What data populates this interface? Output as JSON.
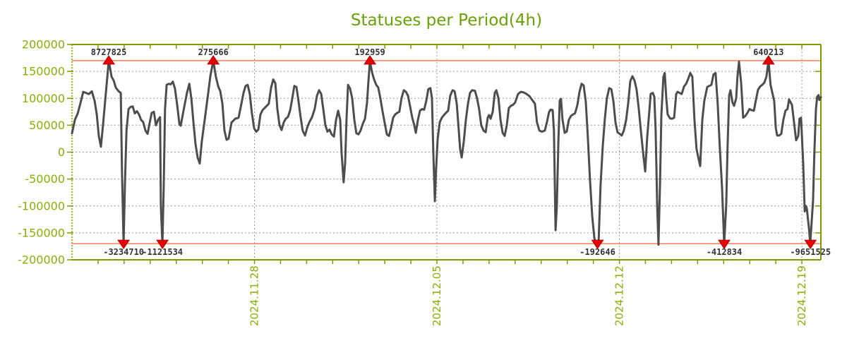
{
  "chart_data": {
    "type": "line",
    "title": "Statuses per Period(4h)",
    "series_name": "statuses",
    "legend": false,
    "grid": true,
    "x_axis": {
      "kind": "time",
      "range_days": [
        0,
        28.73
      ],
      "tick_labels": [
        "2024.11.28",
        "2024.12.05",
        "2024.12.12",
        "2024.12.19"
      ],
      "tick_positions_days": [
        7,
        14,
        21,
        28
      ],
      "minor_tick_interval_days": 1
    },
    "y_axis": {
      "range": [
        -200000,
        200000
      ],
      "tick_values": [
        200000,
        150000,
        100000,
        50000,
        0,
        -50000,
        -100000,
        -150000,
        -200000
      ],
      "tick_labels": [
        "200000",
        "150000",
        "100000",
        "50000",
        "0",
        "-50000",
        "-100000",
        "-150000",
        "-200000"
      ],
      "grid_values": [
        150000,
        100000,
        50000,
        0,
        -50000,
        -100000,
        -150000
      ]
    },
    "thresholds": {
      "upper": 170000,
      "lower": -170000
    },
    "markers": [
      {
        "t": 1.41,
        "side": "top",
        "label": "8727825"
      },
      {
        "t": 5.42,
        "side": "top",
        "label": "275666"
      },
      {
        "t": 11.43,
        "side": "top",
        "label": "192959"
      },
      {
        "t": 26.72,
        "side": "top",
        "label": "640213"
      },
      {
        "t": 1.98,
        "side": "bottom",
        "label": "-3234710"
      },
      {
        "t": 3.47,
        "side": "bottom",
        "label": "-1121534"
      },
      {
        "t": 20.16,
        "side": "bottom",
        "label": "-192646"
      },
      {
        "t": 25.02,
        "side": "bottom",
        "label": "-412834"
      },
      {
        "t": 28.33,
        "side": "bottom",
        "label": "-9651525"
      }
    ],
    "colors": {
      "background": "#ffffff",
      "line": "#4d4d4d",
      "axis": "#7d9b00",
      "axis_text": "#87b101",
      "title": "#69a206",
      "grid": "#999999",
      "threshold": "#ff7e55",
      "marker_fill": "#e60000",
      "marker_stroke": "#b50000",
      "marker_text": "#333333"
    },
    "points": [
      [
        0.0,
        35000
      ],
      [
        0.11,
        60000
      ],
      [
        0.22,
        72000
      ],
      [
        0.32,
        90000
      ],
      [
        0.43,
        112000
      ],
      [
        0.54,
        110000
      ],
      [
        0.65,
        108000
      ],
      [
        0.76,
        113000
      ],
      [
        0.87,
        95000
      ],
      [
        0.95,
        70000
      ],
      [
        1.03,
        30000
      ],
      [
        1.11,
        10000
      ],
      [
        1.19,
        50000
      ],
      [
        1.3,
        110000
      ],
      [
        1.41,
        170000
      ],
      [
        1.52,
        140000
      ],
      [
        1.6,
        133000
      ],
      [
        1.68,
        120000
      ],
      [
        1.79,
        113000
      ],
      [
        1.87,
        110000
      ],
      [
        1.92,
        -40000
      ],
      [
        1.98,
        -170000
      ],
      [
        2.03,
        -60000
      ],
      [
        2.09,
        40000
      ],
      [
        2.17,
        80000
      ],
      [
        2.25,
        84000
      ],
      [
        2.33,
        85000
      ],
      [
        2.41,
        72000
      ],
      [
        2.49,
        76000
      ],
      [
        2.57,
        70000
      ],
      [
        2.65,
        60000
      ],
      [
        2.73,
        56000
      ],
      [
        2.82,
        40000
      ],
      [
        2.9,
        34000
      ],
      [
        2.98,
        55000
      ],
      [
        3.06,
        73000
      ],
      [
        3.14,
        75000
      ],
      [
        3.22,
        50000
      ],
      [
        3.3,
        60000
      ],
      [
        3.38,
        65000
      ],
      [
        3.41,
        -100000
      ],
      [
        3.47,
        -170000
      ],
      [
        3.52,
        -60000
      ],
      [
        3.57,
        80000
      ],
      [
        3.63,
        125000
      ],
      [
        3.71,
        127000
      ],
      [
        3.79,
        126000
      ],
      [
        3.87,
        131000
      ],
      [
        3.95,
        118000
      ],
      [
        4.03,
        90000
      ],
      [
        4.12,
        52000
      ],
      [
        4.17,
        49000
      ],
      [
        4.25,
        70000
      ],
      [
        4.33,
        90000
      ],
      [
        4.41,
        110000
      ],
      [
        4.5,
        127000
      ],
      [
        4.58,
        100000
      ],
      [
        4.66,
        55000
      ],
      [
        4.74,
        15000
      ],
      [
        4.82,
        -10000
      ],
      [
        4.9,
        -21000
      ],
      [
        4.98,
        20000
      ],
      [
        5.09,
        60000
      ],
      [
        5.2,
        100000
      ],
      [
        5.31,
        142000
      ],
      [
        5.42,
        170000
      ],
      [
        5.52,
        140000
      ],
      [
        5.61,
        122000
      ],
      [
        5.69,
        113000
      ],
      [
        5.77,
        90000
      ],
      [
        5.85,
        40000
      ],
      [
        5.93,
        23000
      ],
      [
        6.01,
        25000
      ],
      [
        6.12,
        55000
      ],
      [
        6.26,
        62000
      ],
      [
        6.39,
        64000
      ],
      [
        6.5,
        90000
      ],
      [
        6.58,
        110000
      ],
      [
        6.66,
        123000
      ],
      [
        6.74,
        125000
      ],
      [
        6.82,
        108000
      ],
      [
        6.9,
        73000
      ],
      [
        6.99,
        44000
      ],
      [
        7.07,
        38000
      ],
      [
        7.15,
        42000
      ],
      [
        7.23,
        70000
      ],
      [
        7.31,
        78000
      ],
      [
        7.39,
        82000
      ],
      [
        7.47,
        86000
      ],
      [
        7.55,
        90000
      ],
      [
        7.64,
        120000
      ],
      [
        7.72,
        135000
      ],
      [
        7.8,
        128000
      ],
      [
        7.88,
        80000
      ],
      [
        7.96,
        50000
      ],
      [
        8.04,
        41000
      ],
      [
        8.12,
        55000
      ],
      [
        8.2,
        62000
      ],
      [
        8.29,
        66000
      ],
      [
        8.37,
        78000
      ],
      [
        8.45,
        100000
      ],
      [
        8.53,
        123000
      ],
      [
        8.61,
        121000
      ],
      [
        8.69,
        95000
      ],
      [
        8.77,
        65000
      ],
      [
        8.85,
        40000
      ],
      [
        8.94,
        31000
      ],
      [
        9.04,
        48000
      ],
      [
        9.12,
        57000
      ],
      [
        9.21,
        65000
      ],
      [
        9.31,
        80000
      ],
      [
        9.4,
        105000
      ],
      [
        9.48,
        115000
      ],
      [
        9.56,
        108000
      ],
      [
        9.64,
        80000
      ],
      [
        9.72,
        50000
      ],
      [
        9.8,
        38000
      ],
      [
        9.88,
        42000
      ],
      [
        9.96,
        33000
      ],
      [
        10.05,
        29000
      ],
      [
        10.13,
        60000
      ],
      [
        10.21,
        77000
      ],
      [
        10.29,
        60000
      ],
      [
        10.34,
        0
      ],
      [
        10.42,
        -56000
      ],
      [
        10.48,
        -20000
      ],
      [
        10.53,
        60000
      ],
      [
        10.59,
        125000
      ],
      [
        10.67,
        118000
      ],
      [
        10.75,
        100000
      ],
      [
        10.83,
        60000
      ],
      [
        10.91,
        35000
      ],
      [
        10.99,
        33000
      ],
      [
        11.07,
        40000
      ],
      [
        11.16,
        53000
      ],
      [
        11.24,
        62000
      ],
      [
        11.32,
        92000
      ],
      [
        11.37,
        130000
      ],
      [
        11.43,
        170000
      ],
      [
        11.51,
        148000
      ],
      [
        11.59,
        135000
      ],
      [
        11.67,
        125000
      ],
      [
        11.75,
        120000
      ],
      [
        11.83,
        100000
      ],
      [
        11.91,
        77000
      ],
      [
        12.0,
        53000
      ],
      [
        12.08,
        33000
      ],
      [
        12.16,
        30000
      ],
      [
        12.24,
        45000
      ],
      [
        12.32,
        64000
      ],
      [
        12.4,
        70000
      ],
      [
        12.48,
        73000
      ],
      [
        12.56,
        75000
      ],
      [
        12.64,
        100000
      ],
      [
        12.73,
        115000
      ],
      [
        12.81,
        112000
      ],
      [
        12.89,
        105000
      ],
      [
        12.97,
        85000
      ],
      [
        13.05,
        65000
      ],
      [
        13.13,
        50000
      ],
      [
        13.19,
        36000
      ],
      [
        13.27,
        60000
      ],
      [
        13.35,
        77000
      ],
      [
        13.43,
        80000
      ],
      [
        13.51,
        79000
      ],
      [
        13.59,
        95000
      ],
      [
        13.67,
        117000
      ],
      [
        13.75,
        119000
      ],
      [
        13.81,
        100000
      ],
      [
        13.86,
        0
      ],
      [
        13.92,
        -91000
      ],
      [
        13.97,
        -30000
      ],
      [
        14.03,
        25000
      ],
      [
        14.11,
        56000
      ],
      [
        14.19,
        64000
      ],
      [
        14.27,
        69000
      ],
      [
        14.35,
        73000
      ],
      [
        14.43,
        77000
      ],
      [
        14.51,
        105000
      ],
      [
        14.6,
        115000
      ],
      [
        14.68,
        113000
      ],
      [
        14.76,
        90000
      ],
      [
        14.84,
        40000
      ],
      [
        14.89,
        5000
      ],
      [
        14.95,
        -10000
      ],
      [
        15.03,
        20000
      ],
      [
        15.11,
        60000
      ],
      [
        15.19,
        90000
      ],
      [
        15.27,
        110000
      ],
      [
        15.35,
        115000
      ],
      [
        15.46,
        114000
      ],
      [
        15.54,
        100000
      ],
      [
        15.62,
        80000
      ],
      [
        15.7,
        50000
      ],
      [
        15.79,
        40000
      ],
      [
        15.87,
        37000
      ],
      [
        15.95,
        64000
      ],
      [
        16.0,
        69000
      ],
      [
        16.06,
        62000
      ],
      [
        16.14,
        75000
      ],
      [
        16.22,
        110000
      ],
      [
        16.28,
        115000
      ],
      [
        16.36,
        100000
      ],
      [
        16.44,
        60000
      ],
      [
        16.52,
        36000
      ],
      [
        16.6,
        30000
      ],
      [
        16.68,
        50000
      ],
      [
        16.76,
        82000
      ],
      [
        16.84,
        86000
      ],
      [
        16.92,
        88000
      ],
      [
        17.0,
        92000
      ],
      [
        17.11,
        108000
      ],
      [
        17.22,
        112000
      ],
      [
        17.33,
        111000
      ],
      [
        17.44,
        108000
      ],
      [
        17.55,
        104000
      ],
      [
        17.76,
        90000
      ],
      [
        17.84,
        55000
      ],
      [
        17.93,
        40000
      ],
      [
        18.03,
        38000
      ],
      [
        18.14,
        40000
      ],
      [
        18.22,
        56000
      ],
      [
        18.3,
        74000
      ],
      [
        18.36,
        79000
      ],
      [
        18.44,
        78000
      ],
      [
        18.49,
        40000
      ],
      [
        18.55,
        -145000
      ],
      [
        18.6,
        -100000
      ],
      [
        18.66,
        20000
      ],
      [
        18.71,
        96000
      ],
      [
        18.76,
        99000
      ],
      [
        18.82,
        60000
      ],
      [
        18.9,
        36000
      ],
      [
        18.98,
        38000
      ],
      [
        19.06,
        60000
      ],
      [
        19.14,
        67000
      ],
      [
        19.22,
        70000
      ],
      [
        19.3,
        72000
      ],
      [
        19.39,
        88000
      ],
      [
        19.47,
        112000
      ],
      [
        19.55,
        127000
      ],
      [
        19.63,
        124000
      ],
      [
        19.71,
        94000
      ],
      [
        19.79,
        29000
      ],
      [
        19.87,
        -50000
      ],
      [
        19.96,
        -120000
      ],
      [
        20.04,
        -160000
      ],
      [
        20.12,
        -170000
      ],
      [
        20.2,
        -170000
      ],
      [
        20.28,
        -60000
      ],
      [
        20.36,
        10000
      ],
      [
        20.44,
        60000
      ],
      [
        20.52,
        100000
      ],
      [
        20.61,
        119000
      ],
      [
        20.69,
        117000
      ],
      [
        20.77,
        95000
      ],
      [
        20.85,
        55000
      ],
      [
        20.93,
        37000
      ],
      [
        21.01,
        34000
      ],
      [
        21.09,
        31000
      ],
      [
        21.17,
        40000
      ],
      [
        21.26,
        60000
      ],
      [
        21.34,
        92000
      ],
      [
        21.42,
        132000
      ],
      [
        21.5,
        141000
      ],
      [
        21.58,
        133000
      ],
      [
        21.66,
        116000
      ],
      [
        21.74,
        82000
      ],
      [
        21.82,
        42000
      ],
      [
        21.9,
        3000
      ],
      [
        21.99,
        -36000
      ],
      [
        22.07,
        29000
      ],
      [
        22.15,
        77000
      ],
      [
        22.2,
        108000
      ],
      [
        22.28,
        110000
      ],
      [
        22.34,
        103000
      ],
      [
        22.39,
        40000
      ],
      [
        22.45,
        -100000
      ],
      [
        22.5,
        -172000
      ],
      [
        22.56,
        -58000
      ],
      [
        22.61,
        69000
      ],
      [
        22.69,
        140000
      ],
      [
        22.74,
        147000
      ],
      [
        22.8,
        100000
      ],
      [
        22.85,
        70000
      ],
      [
        22.94,
        63000
      ],
      [
        23.01,
        62000
      ],
      [
        23.1,
        64000
      ],
      [
        23.18,
        108000
      ],
      [
        23.23,
        112000
      ],
      [
        23.31,
        110000
      ],
      [
        23.39,
        108000
      ],
      [
        23.48,
        122000
      ],
      [
        23.56,
        127000
      ],
      [
        23.64,
        136000
      ],
      [
        23.72,
        147000
      ],
      [
        23.8,
        140000
      ],
      [
        23.88,
        60000
      ],
      [
        23.96,
        6000
      ],
      [
        24.04,
        -13000
      ],
      [
        24.1,
        -26000
      ],
      [
        24.18,
        60000
      ],
      [
        24.26,
        96000
      ],
      [
        24.37,
        121000
      ],
      [
        24.45,
        123000
      ],
      [
        24.53,
        125000
      ],
      [
        24.61,
        144000
      ],
      [
        24.69,
        147000
      ],
      [
        24.77,
        90000
      ],
      [
        24.85,
        11000
      ],
      [
        24.94,
        -67000
      ],
      [
        25.02,
        -170000
      ],
      [
        25.1,
        -97000
      ],
      [
        25.15,
        10000
      ],
      [
        25.21,
        105000
      ],
      [
        25.26,
        115000
      ],
      [
        25.34,
        92000
      ],
      [
        25.4,
        86000
      ],
      [
        25.48,
        100000
      ],
      [
        25.53,
        140000
      ],
      [
        25.59,
        168000
      ],
      [
        25.67,
        129000
      ],
      [
        25.75,
        64000
      ],
      [
        25.83,
        67000
      ],
      [
        25.91,
        73000
      ],
      [
        25.99,
        80000
      ],
      [
        26.07,
        78000
      ],
      [
        26.16,
        77000
      ],
      [
        26.24,
        97000
      ],
      [
        26.32,
        116000
      ],
      [
        26.4,
        122000
      ],
      [
        26.48,
        125000
      ],
      [
        26.56,
        129000
      ],
      [
        26.64,
        140000
      ],
      [
        26.72,
        170000
      ],
      [
        26.8,
        125000
      ],
      [
        26.86,
        112000
      ],
      [
        26.94,
        95000
      ],
      [
        27.0,
        45000
      ],
      [
        27.05,
        31000
      ],
      [
        27.13,
        31000
      ],
      [
        27.21,
        34000
      ],
      [
        27.29,
        60000
      ],
      [
        27.37,
        77000
      ],
      [
        27.45,
        80000
      ],
      [
        27.51,
        98000
      ],
      [
        27.62,
        88000
      ],
      [
        27.7,
        55000
      ],
      [
        27.78,
        22000
      ],
      [
        27.86,
        30000
      ],
      [
        27.91,
        62000
      ],
      [
        27.97,
        64000
      ],
      [
        28.05,
        -20000
      ],
      [
        28.11,
        -110000
      ],
      [
        28.16,
        -100000
      ],
      [
        28.19,
        -105000
      ],
      [
        28.27,
        -140000
      ],
      [
        28.32,
        -170000
      ],
      [
        28.43,
        -90000
      ],
      [
        28.48,
        0
      ],
      [
        28.54,
        80000
      ],
      [
        28.59,
        103000
      ],
      [
        28.64,
        106000
      ],
      [
        28.67,
        97000
      ],
      [
        28.73,
        102000
      ]
    ]
  }
}
